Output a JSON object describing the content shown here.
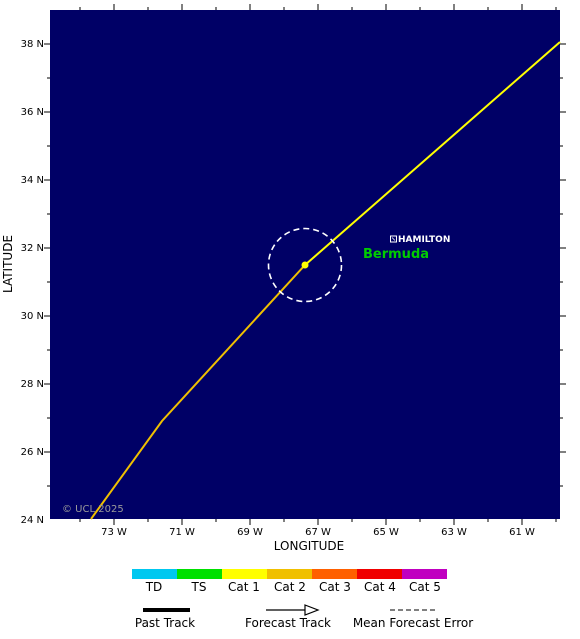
{
  "map": {
    "xlabel": "LONGITUDE",
    "ylabel": "LATITUDE",
    "copyright": "© UCL 2025",
    "x_ticks": [
      "73 W",
      "71 W",
      "69 W",
      "67 W",
      "65 W",
      "63 W",
      "61 W"
    ],
    "y_ticks": [
      "38 N",
      "36 N",
      "34 N",
      "32 N",
      "30 N",
      "28 N",
      "26 N",
      "24 N"
    ],
    "background_color": "#000066",
    "city": {
      "name": "HAMILTON"
    },
    "country": {
      "name": "Bermuda",
      "color": "#00cc00"
    },
    "storm_position": {
      "lat": 31.5,
      "lon": -67.4
    }
  },
  "intensity_legend": [
    {
      "label": "TD",
      "color": "#00c8f0"
    },
    {
      "label": "TS",
      "color": "#00e000"
    },
    {
      "label": "Cat 1",
      "color": "#ffff00"
    },
    {
      "label": "Cat 2",
      "color": "#f0c000"
    },
    {
      "label": "Cat 3",
      "color": "#ff6000"
    },
    {
      "label": "Cat 4",
      "color": "#f00000"
    },
    {
      "label": "Cat 5",
      "color": "#c000c0"
    }
  ],
  "track_legend": {
    "past": "Past Track",
    "forecast": "Forecast Track",
    "error": "Mean Forecast Error"
  }
}
